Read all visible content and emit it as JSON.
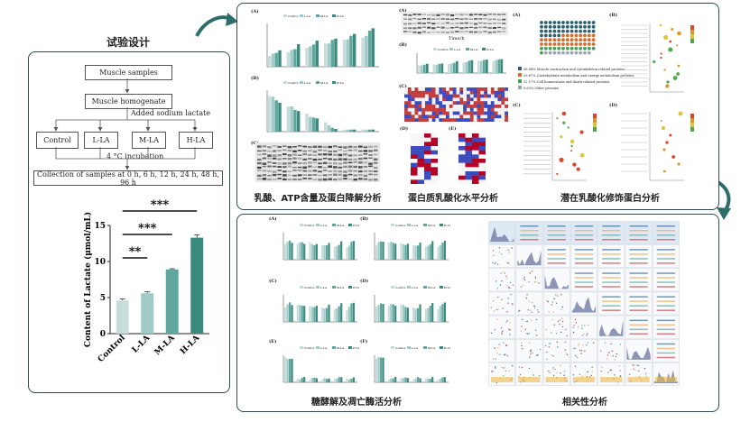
{
  "left": {
    "title": "试验设计",
    "flow": {
      "samples": "Muscle samples",
      "homogenate": "Muscle homogenate",
      "added": "Added sodium lactate",
      "groups": [
        "Control",
        "L-LA",
        "M-LA",
        "H-LA"
      ],
      "incubation": "4 °C incubation",
      "collection": "Collection of samples at 0 h, 6 h, 12 h, 24 h, 48 h, 96 h"
    }
  },
  "chart_data": {
    "type": "bar",
    "categories": [
      "Control",
      "L-LA",
      "M-LA",
      "H-LA"
    ],
    "values": [
      4.6,
      5.6,
      8.9,
      13.3
    ],
    "errors": [
      0.2,
      0.2,
      0.1,
      0.4
    ],
    "ylabel": "Content of Lactate (μmol/mL)",
    "ylim": [
      0,
      15
    ],
    "yticks": [
      0,
      5,
      10,
      15
    ],
    "significance": [
      "**",
      "***",
      "***"
    ],
    "colors": [
      "#c9dcdc",
      "#9fcac5",
      "#5fa79c",
      "#3b8a7e"
    ]
  },
  "panels": {
    "top_left_caption": "乳酸、ATP含量及蛋白降解分析",
    "top_mid_caption": "蛋白质乳酸化水平分析",
    "top_right_caption": "潜在乳酸化修饰蛋白分析",
    "bottom_left_caption": "糖酵解及凋亡酶活分析",
    "bottom_right_caption": "相关性分析"
  },
  "labels": {
    "A": "(A)",
    "B": "(B)",
    "C": "(C)",
    "D": "(D)",
    "E": "(E)",
    "F": "(F)",
    "time": "Time (h)",
    "lactate_axis": "Lactate (μmol/mL)",
    "atp_axis": "ATP (μmol/mL)",
    "timeh": "Time/h",
    "legend": [
      "Control",
      "L-LA",
      "M-LA",
      "H-LA"
    ]
  },
  "pie_legend": [
    "38.94%   Muscle contraction and cytoskeleton related proteins",
    "29.87%   Carbohydrate metabolism and energy metabolism proteins",
    "12.17%   Cell homeostasis and death-related proteins",
    "9.63%    Other proteins"
  ],
  "colors": {
    "teal": "#3b8a7e",
    "panel_border": "#2d4a55",
    "arrow": "#2e6e6a"
  }
}
